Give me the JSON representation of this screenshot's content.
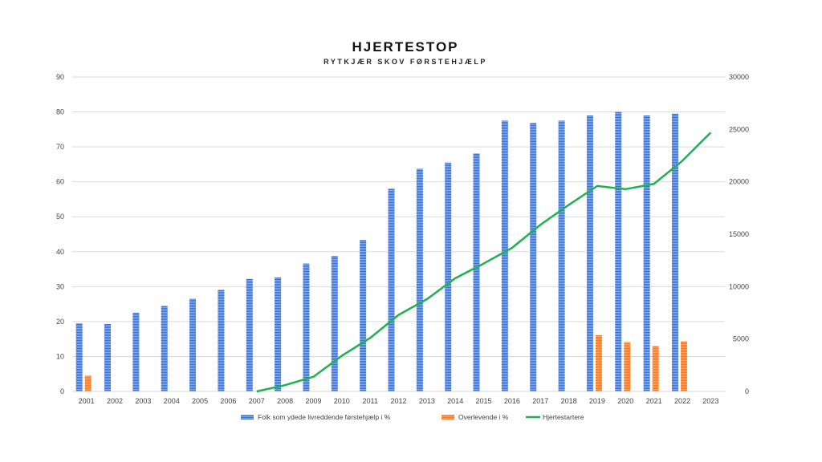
{
  "chart_data": {
    "type": "bar",
    "title": "HJERTESTOP",
    "subtitle": "RYTKJÆR SKOV FØRSTEHJÆLP",
    "categories": [
      "2001",
      "2002",
      "2003",
      "2004",
      "2005",
      "2006",
      "2007",
      "2008",
      "2009",
      "2010",
      "2011",
      "2012",
      "2013",
      "2014",
      "2015",
      "2016",
      "2017",
      "2018",
      "2019",
      "2020",
      "2021",
      "2022",
      "2023"
    ],
    "ylim": [
      0,
      90
    ],
    "yticks": [
      0,
      10,
      20,
      30,
      40,
      50,
      60,
      70,
      80,
      90
    ],
    "y2lim": [
      0,
      30000
    ],
    "y2ticks": [
      0,
      5000,
      10000,
      15000,
      20000,
      25000,
      30000
    ],
    "grid": true,
    "legend_position": "bottom",
    "series": [
      {
        "name": "Folk som ydede livreddende førstehjælp i %",
        "type": "bar",
        "axis": "left",
        "color": "#4472c4",
        "values": [
          19.5,
          19.3,
          22.5,
          24.5,
          26.5,
          29.1,
          32.2,
          32.6,
          36.6,
          38.8,
          43.4,
          58.1,
          63.7,
          65.5,
          68.1,
          77.5,
          76.9,
          77.5,
          79.0,
          80.0,
          79.0,
          79.5,
          null
        ]
      },
      {
        "name": "Overlevende i %",
        "type": "bar",
        "axis": "left",
        "color": "#ed7d31",
        "values": [
          4.5,
          null,
          null,
          null,
          null,
          null,
          null,
          null,
          null,
          null,
          null,
          null,
          null,
          null,
          null,
          null,
          null,
          null,
          16.1,
          14.1,
          13.0,
          14.3,
          null
        ]
      },
      {
        "name": "Hjertestartere",
        "type": "line",
        "axis": "right",
        "color": "#1fb152",
        "values": [
          null,
          null,
          null,
          null,
          null,
          null,
          0,
          600,
          1400,
          3400,
          5100,
          7300,
          8800,
          10800,
          12200,
          13700,
          15900,
          17800,
          19600,
          19300,
          19800,
          22000,
          24700
        ]
      }
    ]
  }
}
